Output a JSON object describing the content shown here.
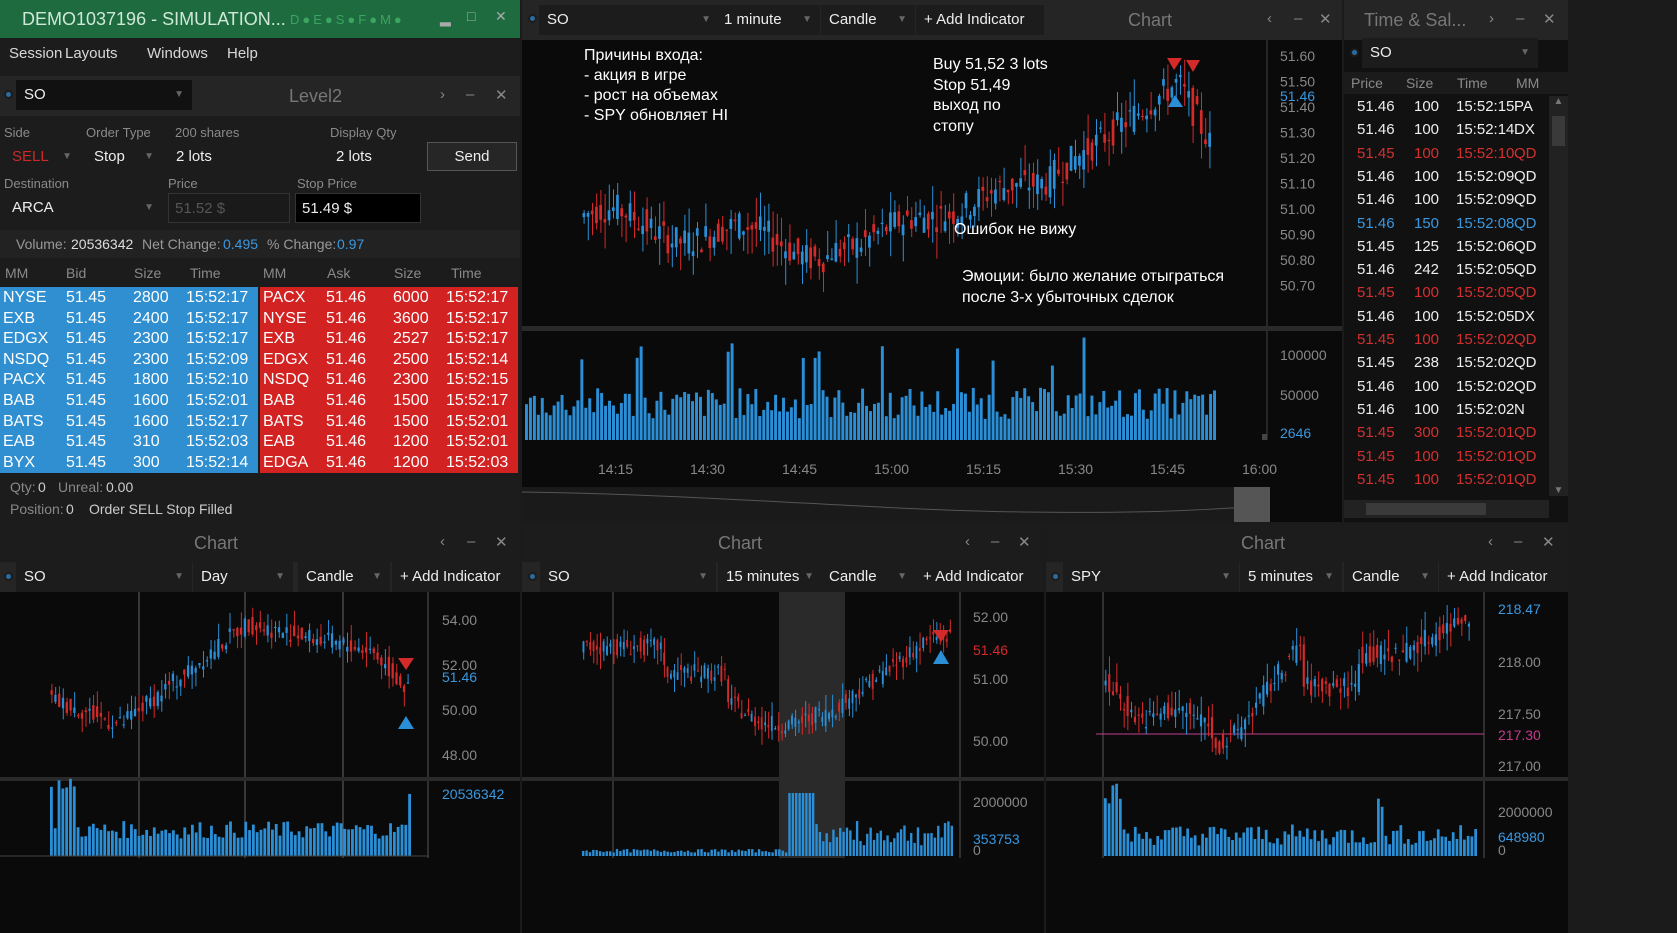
{
  "app": {
    "title": "DEMO1037196 - SIMULATION...",
    "status_letters": [
      "D",
      "E",
      "S",
      "F",
      "M"
    ]
  },
  "menu": [
    "Session",
    "Layouts",
    "Windows",
    "Help"
  ],
  "level2": {
    "title": "Level2",
    "symbol": "SO",
    "side_label": "Side",
    "side": "SELL",
    "order_type_label": "Order Type",
    "order_type": "Stop",
    "shares_label": "200 shares",
    "shares": "2 lots",
    "display_qty_label": "Display Qty",
    "display_qty": "2 lots",
    "send": "Send",
    "destination_label": "Destination",
    "destination": "ARCA",
    "price_label": "Price",
    "price": "51.52 $",
    "stop_price_label": "Stop Price",
    "stop_price": "51.49 $",
    "volume_label": "Volume:",
    "volume": "20536342",
    "net_change_label": "Net Change:",
    "net_change": "0.495",
    "pct_change_label": "% Change:",
    "pct_change": "0.97",
    "headers": [
      "MM",
      "Bid",
      "Size",
      "Time",
      "MM",
      "Ask",
      "Size",
      "Time"
    ],
    "bids": [
      [
        "NYSE",
        "51.45",
        "2800",
        "15:52:17"
      ],
      [
        "EXB",
        "51.45",
        "2400",
        "15:52:17"
      ],
      [
        "EDGX",
        "51.45",
        "2300",
        "15:52:17"
      ],
      [
        "NSDQ",
        "51.45",
        "2300",
        "15:52:09"
      ],
      [
        "PACX",
        "51.45",
        "1800",
        "15:52:10"
      ],
      [
        "BAB",
        "51.45",
        "1600",
        "15:52:01"
      ],
      [
        "BATS",
        "51.45",
        "1600",
        "15:52:17"
      ],
      [
        "EAB",
        "51.45",
        "310",
        "15:52:03"
      ],
      [
        "BYX",
        "51.45",
        "300",
        "15:52:14"
      ]
    ],
    "asks": [
      [
        "PACX",
        "51.46",
        "6000",
        "15:52:17"
      ],
      [
        "NYSE",
        "51.46",
        "3600",
        "15:52:17"
      ],
      [
        "EXB",
        "51.46",
        "2527",
        "15:52:17"
      ],
      [
        "EDGX",
        "51.46",
        "2500",
        "15:52:14"
      ],
      [
        "NSDQ",
        "51.46",
        "2300",
        "15:52:15"
      ],
      [
        "BAB",
        "51.46",
        "1500",
        "15:52:17"
      ],
      [
        "BATS",
        "51.46",
        "1500",
        "15:52:01"
      ],
      [
        "EAB",
        "51.46",
        "1200",
        "15:52:01"
      ],
      [
        "EDGA",
        "51.46",
        "1200",
        "15:52:03"
      ]
    ],
    "qty_label": "Qty:",
    "qty": "0",
    "unreal_label": "Unreal:",
    "unreal": "0.00",
    "position_label": "Position:",
    "position": "0",
    "status": "Order SELL Stop Filled",
    "bid_color": "#2f8fd0",
    "ask_color": "#d32222"
  },
  "main_chart": {
    "title": "Chart",
    "symbol": "SO",
    "interval": "1 minute",
    "type": "Candle",
    "add_indicator": "+ Add Indicator",
    "notes": {
      "entry": [
        "Причины входа:",
        "- акция в игре",
        "- рост на объемах",
        "- SPY обновляет HI"
      ],
      "trade": [
        "Buy 51,52 3 lots",
        "Stop 51,49",
        "выход по",
        "стопу"
      ],
      "errors": "Ошибок не вижу",
      "emotions": [
        "Эмоции: было желание отыграться",
        "после 3-х убыточных сделок"
      ]
    },
    "price_ticks": [
      "51.60",
      "51.50",
      "51.40",
      "51.30",
      "51.20",
      "51.10",
      "51.00",
      "50.90",
      "50.80",
      "50.70"
    ],
    "last": "51.46",
    "vol_ticks": [
      "100000",
      "50000"
    ],
    "vol_last": "2646",
    "time_ticks": [
      "14:15",
      "14:30",
      "14:45",
      "15:00",
      "15:15",
      "15:30",
      "15:45",
      "16:00"
    ]
  },
  "time_sales": {
    "title": "Time & Sal...",
    "symbol": "SO",
    "headers": [
      "Price",
      "Size",
      "Time",
      "MM"
    ],
    "rows": [
      [
        "51.46",
        "100",
        "15:52:15",
        "PA",
        "w"
      ],
      [
        "51.46",
        "100",
        "15:52:14",
        "DX",
        "w"
      ],
      [
        "51.45",
        "100",
        "15:52:10",
        "QD",
        "r"
      ],
      [
        "51.46",
        "100",
        "15:52:09",
        "QD",
        "w"
      ],
      [
        "51.46",
        "100",
        "15:52:09",
        "QD",
        "w"
      ],
      [
        "51.46",
        "150",
        "15:52:08",
        "QD",
        "b"
      ],
      [
        "51.45",
        "125",
        "15:52:06",
        "QD",
        "w"
      ],
      [
        "51.46",
        "242",
        "15:52:05",
        "QD",
        "w"
      ],
      [
        "51.45",
        "100",
        "15:52:05",
        "QD",
        "r"
      ],
      [
        "51.46",
        "100",
        "15:52:05",
        "DX",
        "w"
      ],
      [
        "51.45",
        "100",
        "15:52:02",
        "QD",
        "r"
      ],
      [
        "51.45",
        "238",
        "15:52:02",
        "QD",
        "w"
      ],
      [
        "51.46",
        "100",
        "15:52:02",
        "QD",
        "w"
      ],
      [
        "51.46",
        "100",
        "15:52:02",
        "N",
        "w"
      ],
      [
        "51.45",
        "300",
        "15:52:01",
        "QD",
        "r"
      ],
      [
        "51.45",
        "100",
        "15:52:01",
        "QD",
        "r"
      ],
      [
        "51.45",
        "100",
        "15:52:01",
        "QD",
        "r"
      ]
    ]
  },
  "chart_day": {
    "title": "Chart",
    "symbol": "SO",
    "interval": "Day",
    "type": "Candle",
    "add_indicator": "+ Add Indicator",
    "price_ticks": [
      "54.00",
      "52.00",
      "50.00",
      "48.00"
    ],
    "last": "51.46",
    "vol_last": "20536342"
  },
  "chart_15m": {
    "title": "Chart",
    "symbol": "SO",
    "interval": "15 minutes",
    "type": "Candle",
    "add_indicator": "+ Add Indicator",
    "price_ticks": [
      "52.00",
      "51.00",
      "50.00"
    ],
    "last": "51.46",
    "vol_ticks": [
      "2000000",
      "0"
    ],
    "vol_last": "353753"
  },
  "chart_spy": {
    "title": "Chart",
    "symbol": "SPY",
    "interval": "5 minutes",
    "type": "Candle",
    "add_indicator": "+ Add Indicator",
    "price_ticks": [
      "218.00",
      "217.50",
      "217.00"
    ],
    "top": "218.47",
    "line": "217.30",
    "vol_ticks": [
      "2000000",
      "0"
    ],
    "vol_last": "648980"
  }
}
